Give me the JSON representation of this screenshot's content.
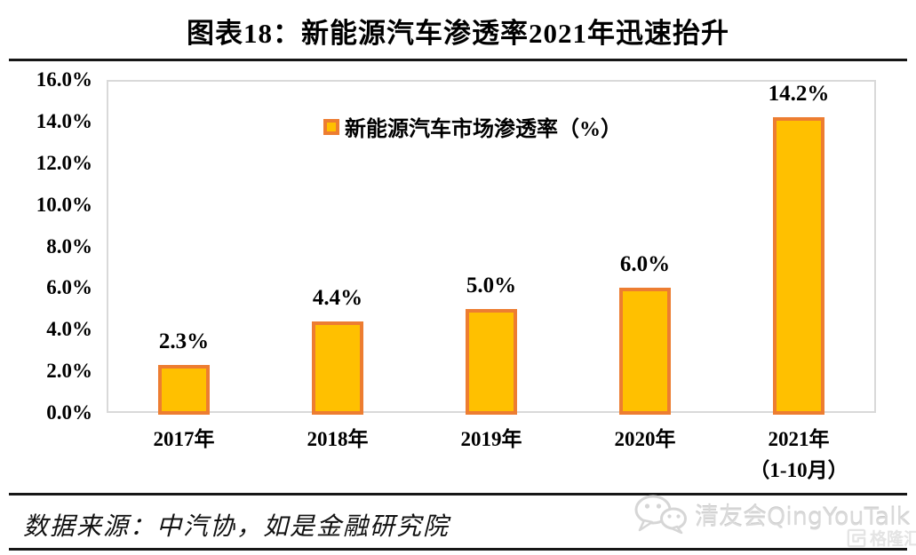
{
  "header": {
    "title": "图表18：新能源汽车渗透率2021年迅速抬升"
  },
  "legend": {
    "label": "新能源汽车市场渗透率（%）"
  },
  "chart_data": {
    "type": "bar",
    "title": "图表18：新能源汽车渗透率2021年迅速抬升",
    "series": [
      {
        "name": "新能源汽车市场渗透率（%）",
        "values": [
          2.3,
          4.4,
          5.0,
          6.0,
          14.2
        ],
        "data_labels": [
          "2.3%",
          "4.4%",
          "5.0%",
          "6.0%",
          "14.2%"
        ]
      }
    ],
    "categories": [
      [
        "2017年"
      ],
      [
        "2018年"
      ],
      [
        "2019年"
      ],
      [
        "2020年"
      ],
      [
        "2021年",
        "（1-10月）"
      ]
    ],
    "ylim": [
      0,
      16
    ],
    "ytick_labels": [
      "0.0%",
      "2.0%",
      "4.0%",
      "6.0%",
      "8.0%",
      "10.0%",
      "12.0%",
      "14.0%",
      "16.0%"
    ],
    "grid": false,
    "legend_position": "top-center",
    "colors": {
      "bar_fill": "#FFC000",
      "bar_border": "#ED7D31",
      "plot_border": "#D9D9D9"
    }
  },
  "footer": {
    "source_text": "数据来源：中汽协，如是金融研究院"
  },
  "watermark": {
    "account_name": "清友会QingYouTalk",
    "logo_text": "格隆汇"
  },
  "icons": {
    "wechat_icon": "wechat-icon",
    "glh_icon": "glonghui-logo-icon"
  }
}
